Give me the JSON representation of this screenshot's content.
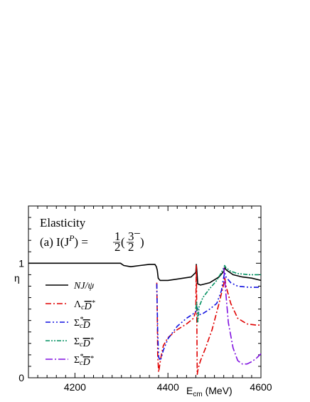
{
  "chart_data": {
    "type": "line",
    "title": "",
    "xlabel": "E",
    "xlabel_sub": "cm",
    "xlabel_unit": " (MeV)",
    "ylabel": "η",
    "xlim": [
      4100,
      4600
    ],
    "ylim": [
      0,
      1.5
    ],
    "x_ticks": [
      4200,
      4400,
      4600
    ],
    "x_tick_labels": [
      "4200",
      "4400",
      "4600"
    ],
    "y_ticks": [
      0,
      1
    ],
    "y_tick_labels": [
      "0",
      "1"
    ],
    "grid": false,
    "legend_position": "left-center",
    "annotations": {
      "line1": "Elasticity",
      "line2_prefix": "(a) I(J",
      "line2_sup": "P",
      "line2_mid": ") = ",
      "frac1_num": "1",
      "frac1_den": "2",
      "frac2_num": "3",
      "frac2_den": "2",
      "frac2_sup": "−"
    },
    "series": [
      {
        "name": "NJ/ψ",
        "color": "#000000",
        "dash": "",
        "x": [
          4100,
          4298,
          4305,
          4320,
          4340,
          4360,
          4372,
          4375,
          4377,
          4379,
          4383,
          4400,
          4450,
          4460,
          4461,
          4462,
          4464,
          4470,
          4490,
          4510,
          4520,
          4522,
          4526,
          4540,
          4560,
          4580,
          4600
        ],
        "y": [
          1.0,
          1.0,
          0.98,
          0.97,
          0.98,
          0.99,
          0.99,
          0.97,
          0.94,
          0.87,
          0.85,
          0.85,
          0.88,
          0.92,
          0.99,
          0.95,
          0.82,
          0.81,
          0.83,
          0.88,
          0.93,
          0.96,
          0.94,
          0.9,
          0.88,
          0.87,
          0.85
        ]
      },
      {
        "name": "Λ_c D̄*",
        "color": "#e00000",
        "dash": "8 3 2 3",
        "x": [
          4376,
          4377,
          4378,
          4380,
          4382,
          4385,
          4390,
          4400,
          4420,
          4440,
          4455,
          4460,
          4461,
          4462,
          4463,
          4465,
          4470,
          4480,
          4495,
          4510,
          4520,
          4522,
          4525,
          4535,
          4550,
          4570,
          4590,
          4600
        ],
        "y": [
          0.83,
          0.55,
          0.2,
          0.05,
          0.1,
          0.18,
          0.28,
          0.35,
          0.42,
          0.47,
          0.52,
          0.58,
          0.98,
          0.6,
          0.03,
          0.08,
          0.15,
          0.25,
          0.42,
          0.65,
          0.82,
          0.88,
          0.8,
          0.65,
          0.52,
          0.47,
          0.46,
          0.46
        ]
      },
      {
        "name": "Σ_c* D̄",
        "color": "#1010e0",
        "dash": "7 3 2 3 2 3",
        "x": [
          4376,
          4378,
          4380,
          4384,
          4390,
          4400,
          4420,
          4440,
          4455,
          4460,
          4462,
          4464,
          4467,
          4475,
          4490,
          4505,
          4515,
          4520,
          4522,
          4525,
          4535,
          4550,
          4575,
          4600
        ],
        "y": [
          0.82,
          0.4,
          0.18,
          0.15,
          0.24,
          0.34,
          0.45,
          0.52,
          0.56,
          0.58,
          0.62,
          0.6,
          0.55,
          0.56,
          0.6,
          0.65,
          0.76,
          0.88,
          0.92,
          0.88,
          0.83,
          0.8,
          0.79,
          0.79
        ]
      },
      {
        "name": "Σ_c D̄*",
        "color": "#009060",
        "dash": "6 2 2 2 2 2",
        "x": [
          4460,
          4462,
          4464,
          4467,
          4475,
          4490,
          4505,
          4515,
          4520,
          4522,
          4525,
          4535,
          4550,
          4575,
          4600
        ],
        "y": [
          0.6,
          0.66,
          0.48,
          0.62,
          0.7,
          0.78,
          0.85,
          0.92,
          0.96,
          0.98,
          0.96,
          0.93,
          0.91,
          0.9,
          0.9
        ]
      },
      {
        "name": "Σ_c* D̄*",
        "color": "#8010e0",
        "dash": "10 3 2 3",
        "x": [
          4520,
          4522,
          4525,
          4530,
          4540,
          4550,
          4560,
          4570,
          4580,
          4590,
          4600
        ],
        "y": [
          0.96,
          0.86,
          0.72,
          0.48,
          0.26,
          0.15,
          0.12,
          0.12,
          0.14,
          0.17,
          0.21
        ]
      }
    ],
    "legend_labels": [
      {
        "main": "NJ/ψ",
        "sub": "",
        "sup": "",
        "bar": ""
      },
      {
        "main": "Λ",
        "sub": "c",
        "sup": "*",
        "bar": "D"
      },
      {
        "main": "Σ",
        "sub": "c",
        "sup": "*",
        "bar": "D",
        "supOnMain": true
      },
      {
        "main": "Σ",
        "sub": "c",
        "sup": "*",
        "bar": "D"
      },
      {
        "main": "Σ",
        "sub": "c",
        "sup": "*",
        "bar": "D",
        "supOnMain": true,
        "supOnBar": true
      }
    ]
  }
}
